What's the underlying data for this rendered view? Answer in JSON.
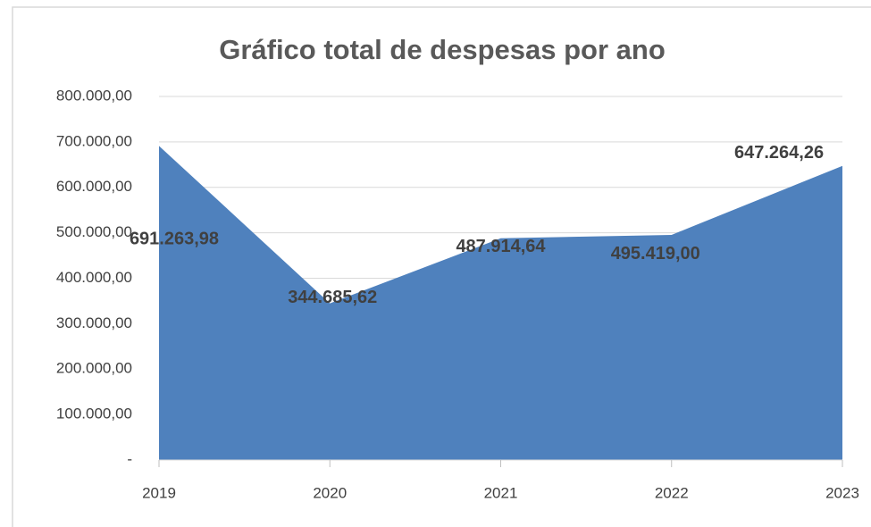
{
  "chart_data": {
    "type": "area",
    "title": "Gráfico total de despesas por ano",
    "categories": [
      "2019",
      "2020",
      "2021",
      "2022",
      "2023"
    ],
    "values": [
      691263.98,
      344685.62,
      487914.64,
      495419.0,
      647264.26
    ],
    "value_labels": [
      "691.263,98",
      "344.685,62",
      "487.914,64",
      "495.419,00",
      "647.264,26"
    ],
    "color": "#4f81bd",
    "ylim": [
      0,
      800000
    ],
    "yticks": [
      {
        "value": 0,
        "label": "-"
      },
      {
        "value": 100000,
        "label": "100.000,00"
      },
      {
        "value": 200000,
        "label": "200.000,00"
      },
      {
        "value": 300000,
        "label": "300.000,00"
      },
      {
        "value": 400000,
        "label": "400.000,00"
      },
      {
        "value": 500000,
        "label": "500.000,00"
      },
      {
        "value": 600000,
        "label": "600.000,00"
      },
      {
        "value": 700000,
        "label": "700.000,00"
      },
      {
        "value": 800000,
        "label": "800.000,00"
      }
    ],
    "grid": true
  }
}
